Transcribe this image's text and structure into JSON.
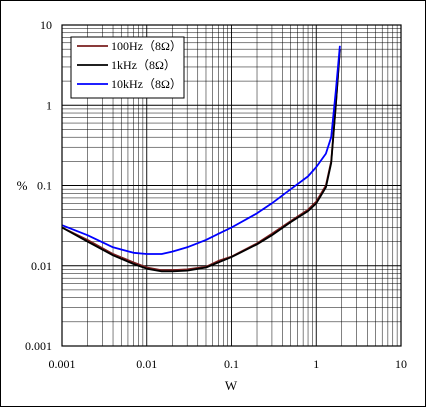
{
  "chart_data": {
    "type": "line",
    "xscale": "log",
    "yscale": "log",
    "xlim": [
      0.001,
      10
    ],
    "ylim": [
      0.001,
      10
    ],
    "xlabel": "W",
    "ylabel": "%",
    "grid": true,
    "legend_position": "top-left",
    "x_ticks": [
      "0.001",
      "0.01",
      "0.1",
      "1",
      "10"
    ],
    "y_ticks": [
      "10",
      "1",
      "0.1",
      "0.01",
      "0.001"
    ],
    "series": [
      {
        "name": "100Hz（8Ω）",
        "color": "#7a1e1e",
        "x": [
          0.001,
          0.002,
          0.004,
          0.007,
          0.01,
          0.015,
          0.02,
          0.03,
          0.05,
          0.07,
          0.1,
          0.2,
          0.3,
          0.5,
          0.8,
          1.0,
          1.3,
          1.5,
          1.7,
          1.9
        ],
        "y": [
          0.03,
          0.021,
          0.014,
          0.011,
          0.0095,
          0.0088,
          0.0088,
          0.009,
          0.0097,
          0.0115,
          0.013,
          0.019,
          0.025,
          0.036,
          0.05,
          0.063,
          0.1,
          0.2,
          1.0,
          5.0
        ]
      },
      {
        "name": "1kHz（8Ω）",
        "color": "#000000",
        "x": [
          0.001,
          0.002,
          0.004,
          0.007,
          0.01,
          0.015,
          0.02,
          0.03,
          0.05,
          0.07,
          0.1,
          0.2,
          0.3,
          0.5,
          0.8,
          1.0,
          1.3,
          1.5,
          1.7,
          1.9
        ],
        "y": [
          0.03,
          0.02,
          0.0135,
          0.0105,
          0.0092,
          0.0085,
          0.0085,
          0.0087,
          0.0095,
          0.011,
          0.0128,
          0.0185,
          0.024,
          0.035,
          0.048,
          0.06,
          0.095,
          0.19,
          1.0,
          5.0
        ]
      },
      {
        "name": "10kHz（8Ω）",
        "color": "#0000ff",
        "x": [
          0.001,
          0.002,
          0.004,
          0.007,
          0.01,
          0.015,
          0.02,
          0.03,
          0.05,
          0.07,
          0.1,
          0.2,
          0.3,
          0.5,
          0.8,
          1.0,
          1.3,
          1.5,
          1.7,
          1.9
        ],
        "y": [
          0.032,
          0.024,
          0.017,
          0.0145,
          0.014,
          0.014,
          0.015,
          0.017,
          0.021,
          0.025,
          0.03,
          0.045,
          0.06,
          0.09,
          0.13,
          0.17,
          0.25,
          0.4,
          1.5,
          5.5
        ]
      }
    ]
  }
}
